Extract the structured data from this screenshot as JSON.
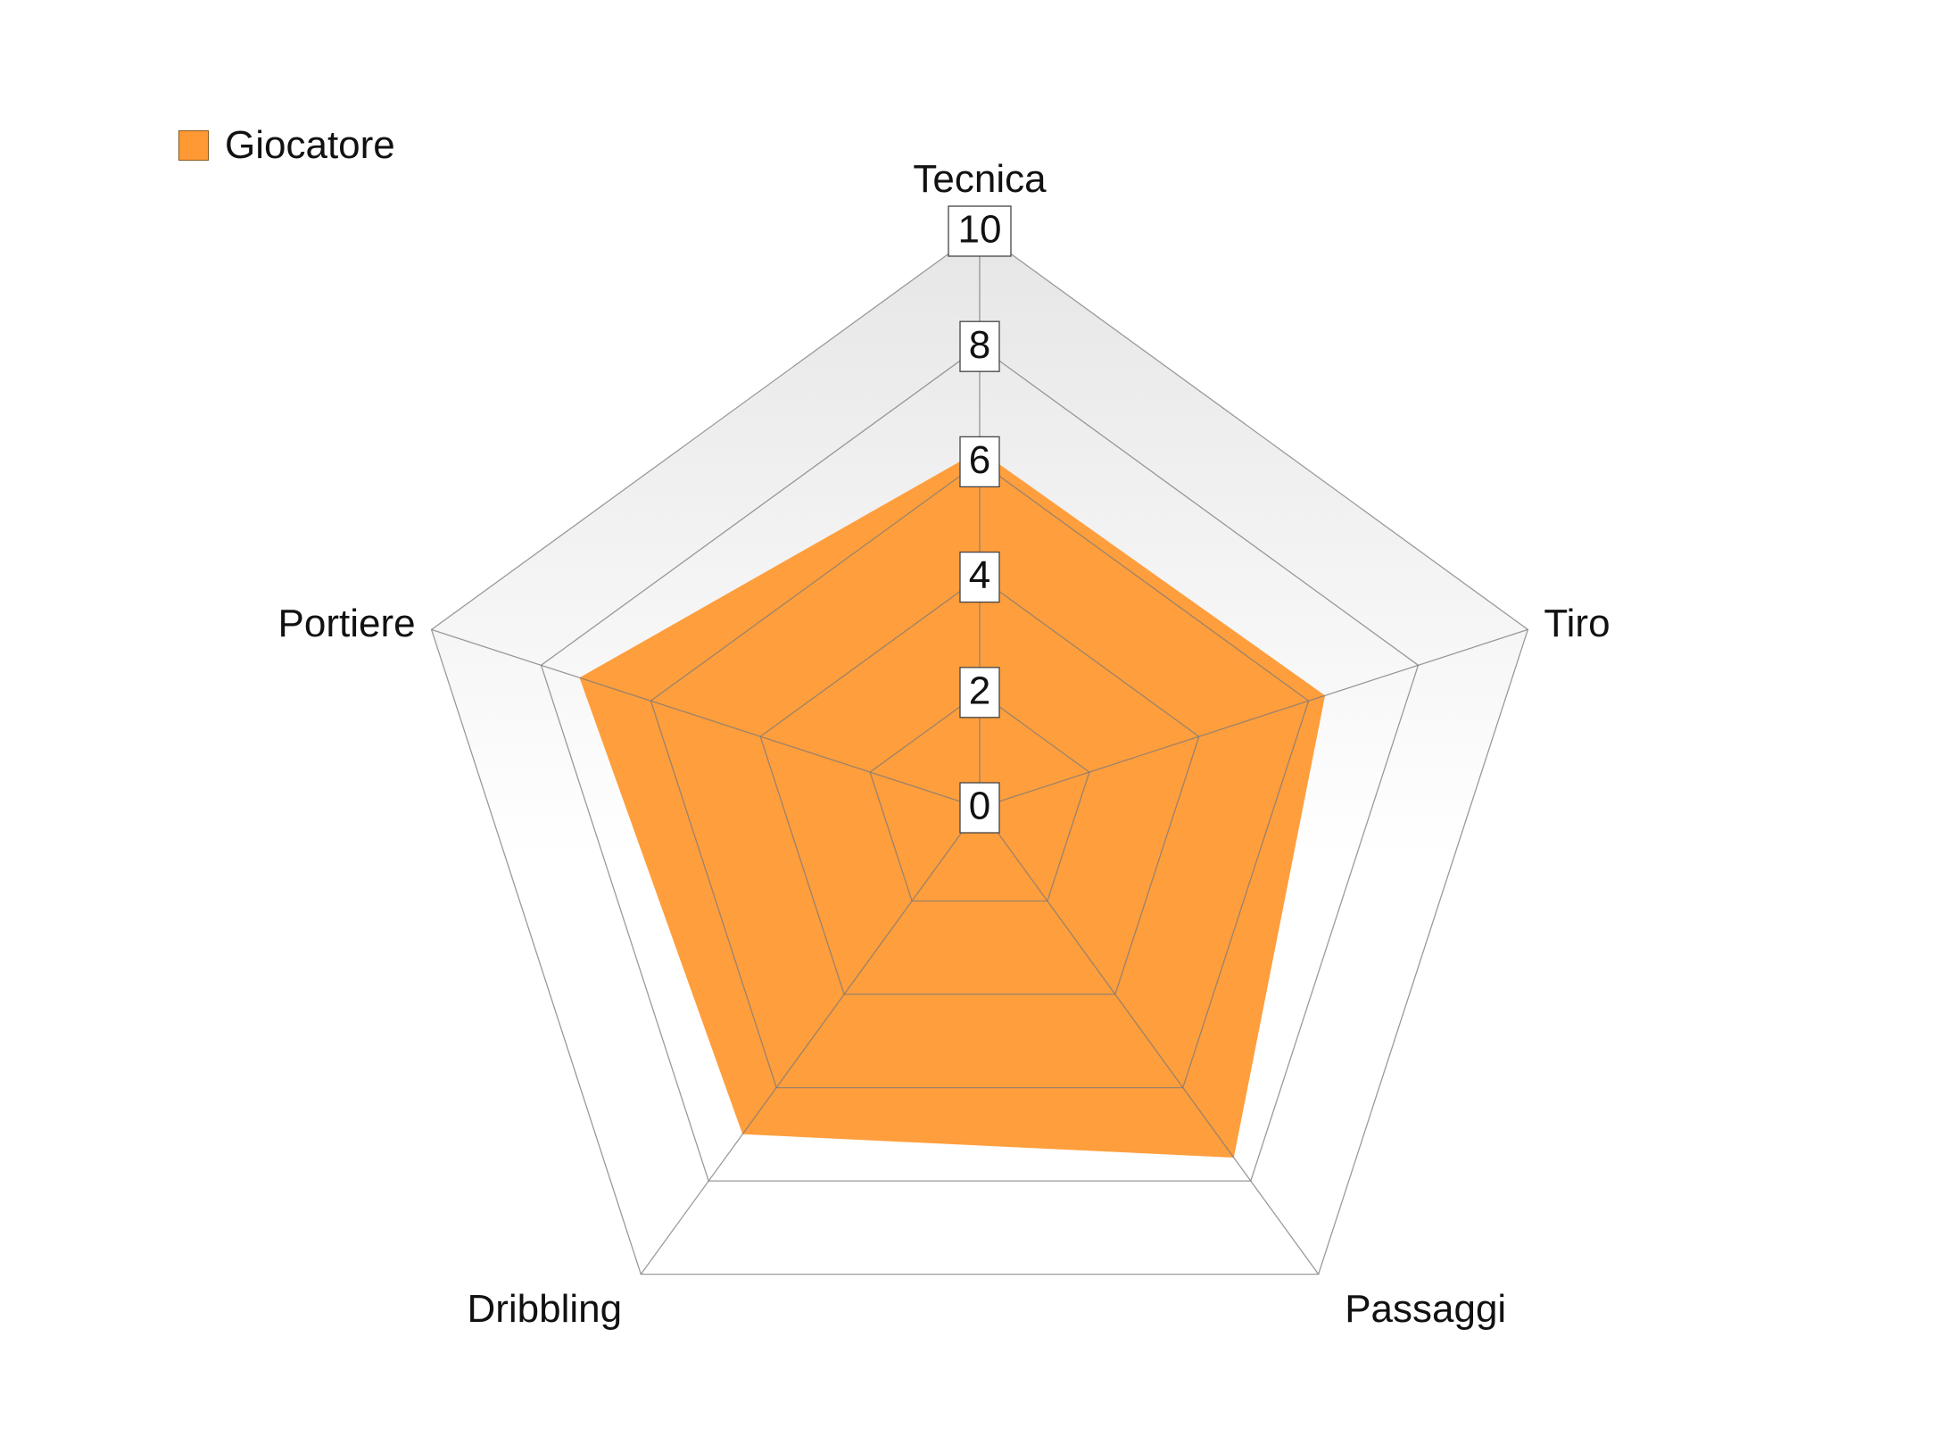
{
  "chart_data": {
    "type": "radar",
    "axes": [
      "Tecnica",
      "Tiro",
      "Passaggi",
      "Dribbling",
      "Portiere"
    ],
    "series": [
      {
        "name": "Giocatore",
        "values": [
          6.2,
          6.3,
          7.5,
          7.0,
          7.3
        ],
        "color": "#ff9933"
      }
    ],
    "rlim": [
      0,
      10
    ],
    "ticks": [
      0,
      2,
      4,
      6,
      8,
      10
    ],
    "tick_labels": [
      "0",
      "2",
      "4",
      "6",
      "8",
      "10"
    ],
    "legend_position": "top-left",
    "grid": true
  }
}
